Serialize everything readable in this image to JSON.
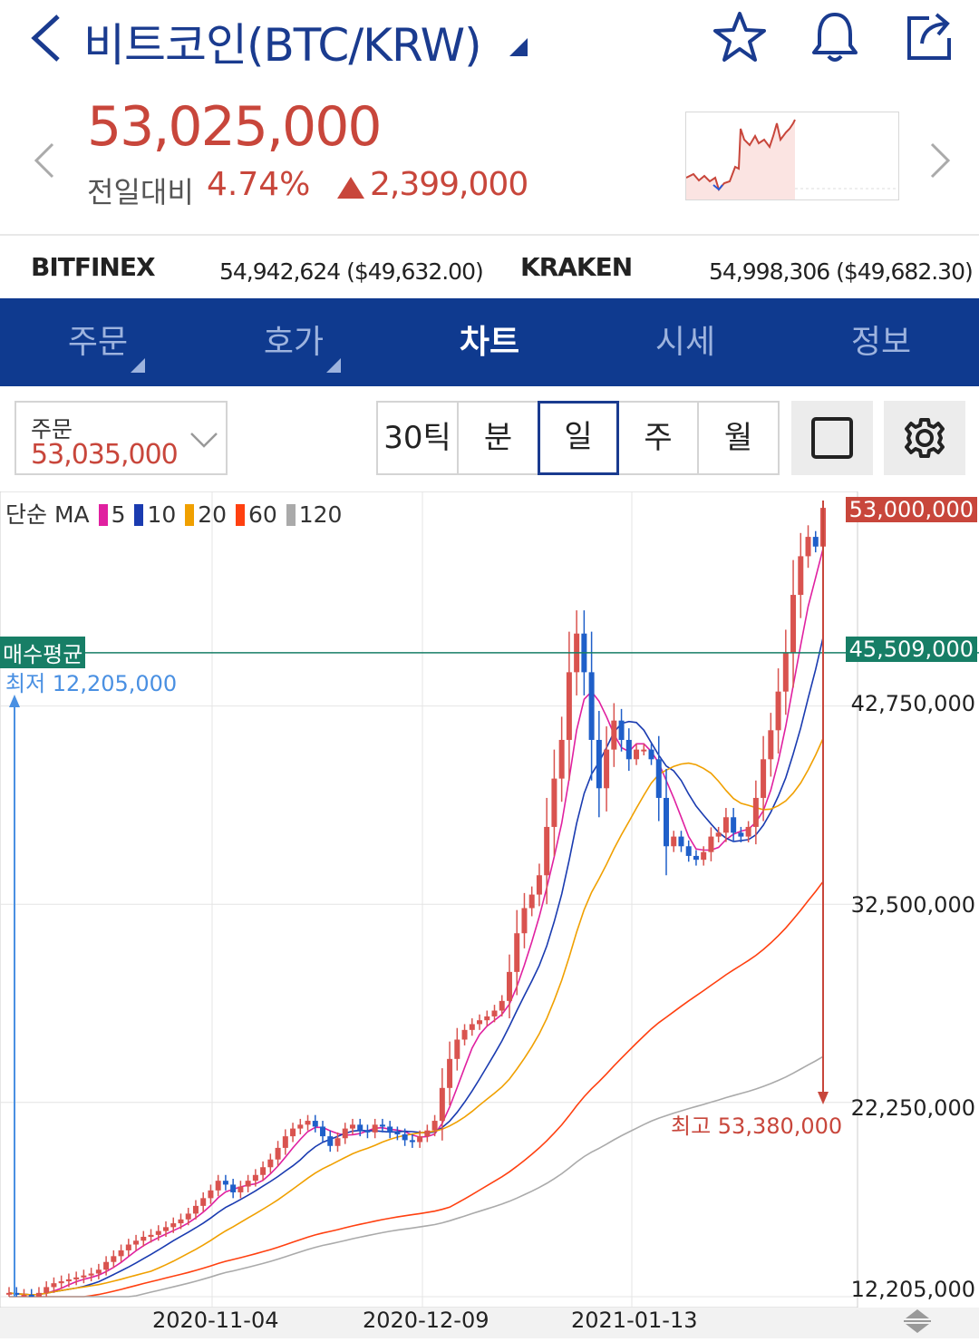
{
  "header": {
    "title": "비트코인(BTC/KRW)",
    "icons": [
      "back-icon",
      "caret-down-icon",
      "star-icon",
      "bell-icon",
      "share-icon"
    ]
  },
  "price": {
    "current": "53,025,000",
    "change_label": "전일대비",
    "change_pct": "4.74%",
    "change_amt": "2,399,000",
    "color_up": "#c8463b"
  },
  "exchanges": [
    {
      "name": "BITFINEX",
      "value": "54,942,624 ($49,632.00)"
    },
    {
      "name": "KRAKEN",
      "value": "54,998,306 ($49,682.30)"
    }
  ],
  "tabs": [
    {
      "label": "주문",
      "has_menu": true
    },
    {
      "label": "호가",
      "has_menu": true
    },
    {
      "label": "차트",
      "active": true
    },
    {
      "label": "시세"
    },
    {
      "label": "정보"
    }
  ],
  "toolbar": {
    "order_label": "주문",
    "order_value": "53,035,000",
    "periods": [
      "30틱",
      "분",
      "일",
      "주",
      "월"
    ],
    "active_period": "일"
  },
  "chart": {
    "legend_prefix": "단순 MA",
    "ma": [
      {
        "label": "5",
        "color": "#e020a0"
      },
      {
        "label": "10",
        "color": "#1a3bb0"
      },
      {
        "label": "20",
        "color": "#f0a000"
      },
      {
        "label": "60",
        "color": "#ff4010"
      },
      {
        "label": "120",
        "color": "#aaaaaa"
      }
    ],
    "current_badge": "53,000,000",
    "avg_badge": "45,509,000",
    "avg_label": "매수평균",
    "low_label": "최저 12,205,000",
    "high_label": "최고 53,380,000",
    "y_labels": [
      "42,750,000",
      "32,500,000",
      "22,250,000",
      "12,205,000"
    ],
    "x_labels": [
      "2020-11-04",
      "2020-12-09",
      "2021-01-13"
    ]
  },
  "chart_data": {
    "type": "candlestick",
    "ylim": [
      12205000,
      53380000
    ],
    "y_ticks": [
      12205000,
      22250000,
      32500000,
      42750000
    ],
    "avg_price": 45509000,
    "last_price": 53000000,
    "high": 53380000,
    "low": 12205000,
    "x_tick_labels": [
      "2020-11-04",
      "2020-12-09",
      "2021-01-13"
    ],
    "close_series": [
      12.4,
      12.3,
      12.3,
      12.2,
      12.4,
      12.7,
      12.9,
      13.0,
      13.1,
      13.2,
      13.3,
      13.4,
      13.6,
      14.0,
      14.3,
      14.6,
      14.9,
      15.1,
      15.3,
      15.4,
      15.6,
      15.8,
      16.0,
      16.2,
      16.5,
      16.9,
      17.3,
      17.7,
      18.2,
      18.0,
      17.6,
      17.9,
      18.2,
      18.5,
      18.9,
      19.3,
      19.9,
      20.5,
      20.9,
      21.1,
      21.3,
      21.0,
      20.5,
      20.0,
      20.4,
      20.9,
      21.1,
      20.8,
      20.7,
      21.1,
      21.0,
      20.7,
      20.6,
      20.3,
      20.2,
      20.5,
      20.8,
      21.3,
      23.0,
      24.5,
      25.5,
      26.0,
      26.3,
      26.5,
      26.7,
      27.0,
      27.5,
      29.0,
      31.0,
      32.3,
      33.0,
      34.0,
      36.5,
      39.0,
      41.0,
      44.5,
      46.5,
      44.5,
      41.0,
      38.5,
      40.5,
      42.0,
      41.0,
      40.0,
      40.5,
      40.5,
      40.0,
      38.0,
      35.5,
      36.0,
      35.5,
      35.0,
      34.8,
      35.2,
      36.0,
      36.2,
      37.0,
      36.2,
      36.0,
      36.5,
      38.0,
      40.0,
      41.5,
      43.5,
      45.5,
      48.5,
      50.5,
      51.5,
      51.0,
      53.0
    ],
    "unit_scale": "millions KRW (approx.)"
  }
}
